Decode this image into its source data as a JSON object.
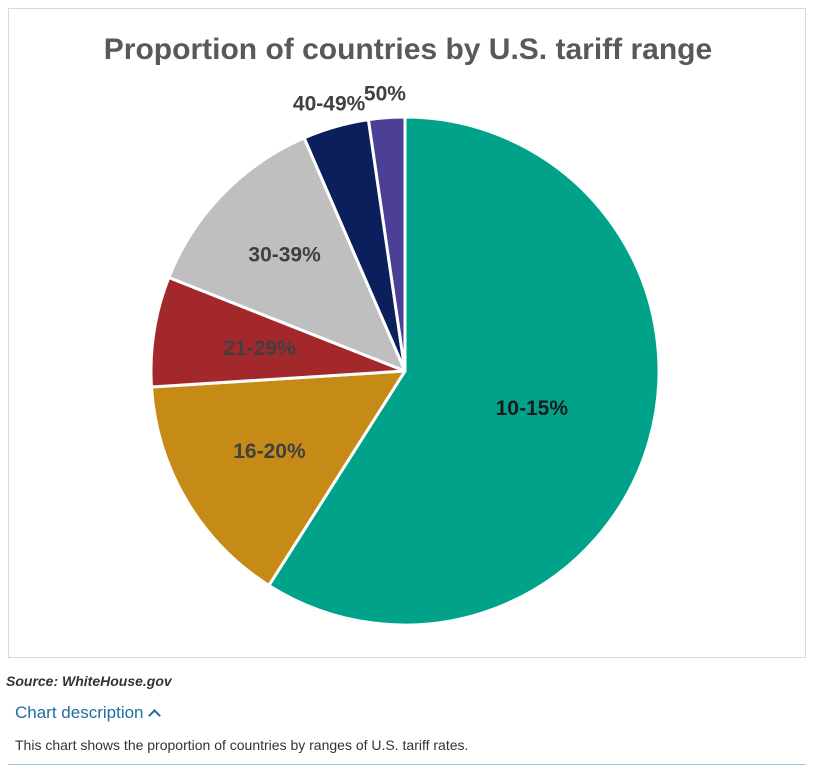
{
  "chart_data": {
    "type": "pie",
    "title": "Proportion of countries by U.S. tariff range",
    "categories": [
      "10-15%",
      "16-20%",
      "21-29%",
      "30-39%",
      "40-49%",
      "50%"
    ],
    "values": [
      59,
      15,
      7,
      12.5,
      4.2,
      2.3
    ],
    "colors": [
      "#00a389",
      "#c68a17",
      "#a3282b",
      "#bfbfbf",
      "#0a1f5c",
      "#4b3f96"
    ],
    "start_angle_deg": 0,
    "direction": "clockwise"
  },
  "source": "Source: WhiteHouse.gov",
  "description": {
    "toggle_label": "Chart description",
    "text": "This chart shows the proportion of countries by ranges of U.S. tariff rates."
  }
}
